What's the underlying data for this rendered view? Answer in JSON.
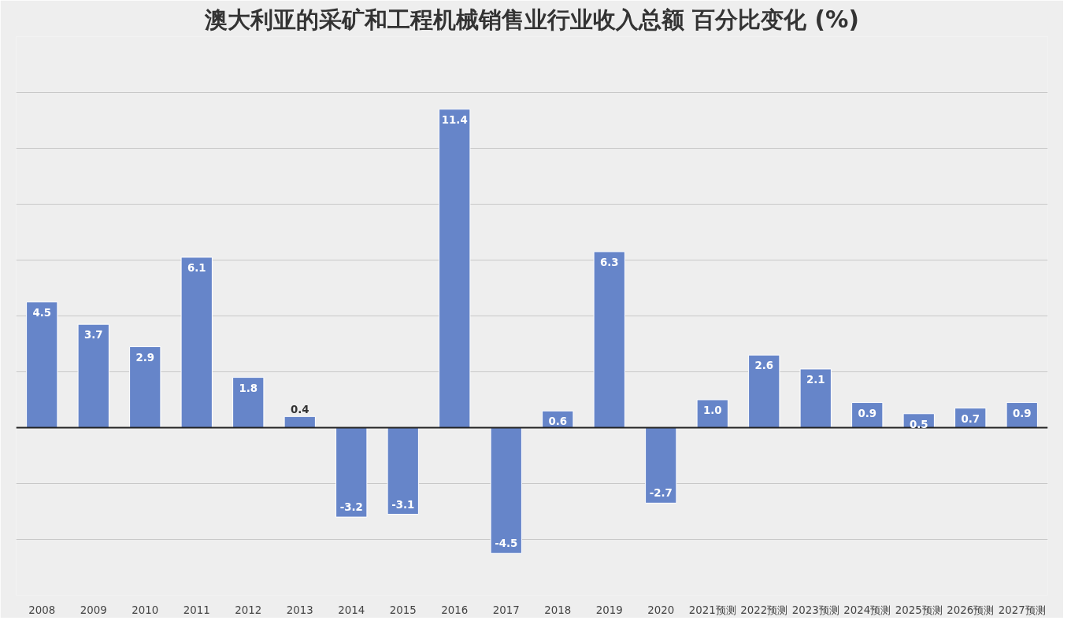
{
  "chart_data": {
    "type": "bar",
    "title": "澳大利亚的采矿和工程机械销售业行业收入总额 百分比变化 (%)",
    "categories": [
      "2008",
      "2009",
      "2010",
      "2011",
      "2012",
      "2013",
      "2014",
      "2015",
      "2016",
      "2017",
      "2018",
      "2019",
      "2020",
      "2021预测",
      "2022预测",
      "2023预测",
      "2024预测",
      "2025预测",
      "2026预测",
      "2027预测"
    ],
    "values": [
      4.5,
      3.7,
      2.9,
      6.1,
      1.8,
      0.4,
      -3.2,
      -3.1,
      11.4,
      -4.5,
      0.6,
      6.3,
      -2.7,
      1.0,
      2.6,
      2.1,
      0.9,
      0.5,
      0.7,
      0.9
    ],
    "color": "#6685c9",
    "value_labels": [
      "4.5",
      "3.7",
      "2.9",
      "6.1",
      "1.8",
      "0.4",
      "-3.2",
      "-3.1",
      "11.4",
      "-4.5",
      "0.6",
      "6.3",
      "-2.7",
      "1.0",
      "2.6",
      "2.1",
      "0.9",
      "0.5",
      "0.7",
      "0.9"
    ],
    "ylim": [
      -6,
      14
    ],
    "yticks": [
      {
        "value": -6,
        "label": null
      },
      {
        "value": -4,
        "label": null
      },
      {
        "value": -2,
        "label": null
      },
      {
        "value": 0,
        "label": null
      },
      {
        "value": 2,
        "label": null
      },
      {
        "value": 4,
        "label": null
      },
      {
        "value": 6,
        "label": null
      },
      {
        "value": 8,
        "label": null
      },
      {
        "value": 10,
        "label": null
      },
      {
        "value": 12,
        "label": null
      },
      {
        "value": 14,
        "label": null
      }
    ],
    "grid": "y",
    "tick_labels": "x"
  }
}
